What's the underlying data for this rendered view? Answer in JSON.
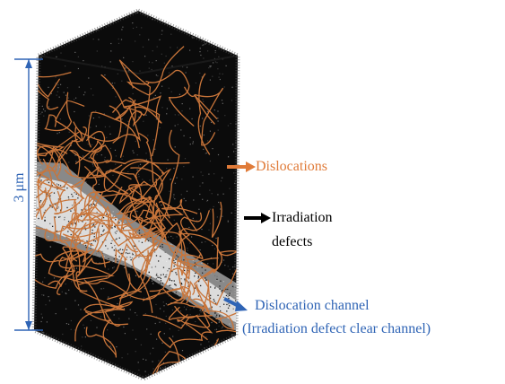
{
  "labels": {
    "dislocations": "Dislocations",
    "irradiation_line1": "Irradiation",
    "irradiation_line2": "defects",
    "channel_line1": "Dislocation channel",
    "channel_line2": "(Irradiation defect clear channel)",
    "scale": "3 μm"
  },
  "colors": {
    "dislocation": "#c9753a",
    "channel": "#2f64b5",
    "defect_cloud": "#000000",
    "arrow_orange": "#e07b39",
    "arrow_black": "#000000"
  }
}
